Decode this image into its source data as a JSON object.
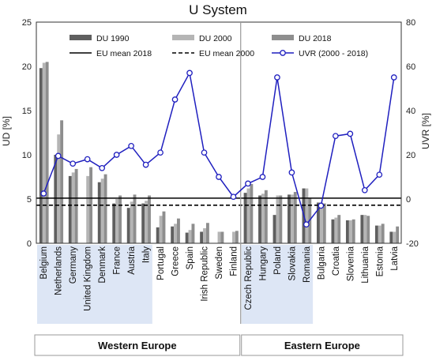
{
  "chart_data": {
    "type": "bar",
    "title": "U System",
    "ylabel": "UD [%]",
    "y2label": "UVR [%]",
    "ylim": [
      0,
      25
    ],
    "yticks": [
      0,
      5,
      10,
      15,
      20,
      25
    ],
    "y2lim": [
      -20,
      80
    ],
    "y2ticks": [
      -20,
      0,
      20,
      40,
      60,
      80
    ],
    "grid": false,
    "legend_position": "top",
    "categories": [
      "Belgium",
      "Netherlands",
      "Germany",
      "United Kingdom",
      "Denmark",
      "France",
      "Austria",
      "Italy",
      "Portugal",
      "Greece",
      "Spain",
      "Irish Republic",
      "Sweden",
      "Finland",
      "Czech Republic",
      "Hungary",
      "Poland",
      "Slovakia",
      "Romania",
      "Bulgaria",
      "Croatia",
      "Slovenia",
      "Lithuania",
      "Estonia",
      "Latvia"
    ],
    "series": [
      {
        "name": "DU 1990",
        "kind": "bar",
        "axis": "left",
        "color": "#5f5f5f",
        "values": [
          19.8,
          10.0,
          7.6,
          0,
          6.9,
          4.5,
          4.0,
          4.5,
          1.8,
          1.9,
          1.2,
          1.3,
          0,
          0,
          5.7,
          5.4,
          3.2,
          5.5,
          6.2,
          4.6,
          2.7,
          2.6,
          3.2,
          2.0,
          1.3
        ]
      },
      {
        "name": "DU 2000",
        "kind": "bar",
        "axis": "left",
        "color": "#b5b5b5",
        "values": [
          20.4,
          12.3,
          8.0,
          7.6,
          7.3,
          5.0,
          4.7,
          4.8,
          3.1,
          2.2,
          1.5,
          1.7,
          1.3,
          1.3,
          6.2,
          5.6,
          5.4,
          5.5,
          6.2,
          4.6,
          2.9,
          2.6,
          3.2,
          2.0,
          1.3
        ]
      },
      {
        "name": "DU 2018",
        "kind": "bar",
        "axis": "left",
        "color": "#8e8e8e",
        "values": [
          20.5,
          13.9,
          8.4,
          8.6,
          7.8,
          5.4,
          5.5,
          5.4,
          3.6,
          2.8,
          2.2,
          2.3,
          1.3,
          1.4,
          6.7,
          6.0,
          5.4,
          5.8,
          5.1,
          4.5,
          3.2,
          2.7,
          3.1,
          2.2,
          1.9
        ]
      },
      {
        "name": "UVR  (2000 - 2018)",
        "kind": "line",
        "axis": "right",
        "color": "#1f1fbf",
        "values": [
          2.5,
          19.5,
          16,
          18,
          14,
          20,
          24,
          15.5,
          21,
          45,
          57,
          21,
          10,
          1,
          7,
          10,
          55,
          12,
          -11.5,
          -3,
          28.5,
          29.5,
          4,
          11,
          55
        ]
      }
    ],
    "reference_lines": [
      {
        "name": "EU mean 2018",
        "value": 5.1,
        "style": "solid"
      },
      {
        "name": "EU mean 2000",
        "value": 4.3,
        "style": "dashed"
      }
    ],
    "groups": [
      {
        "label": "Western Europe",
        "from": 0,
        "to": 13
      },
      {
        "label": "Eastern Europe",
        "from": 14,
        "to": 24
      }
    ],
    "highlight_ranges": [
      [
        0,
        7
      ],
      [
        14,
        18
      ]
    ]
  }
}
